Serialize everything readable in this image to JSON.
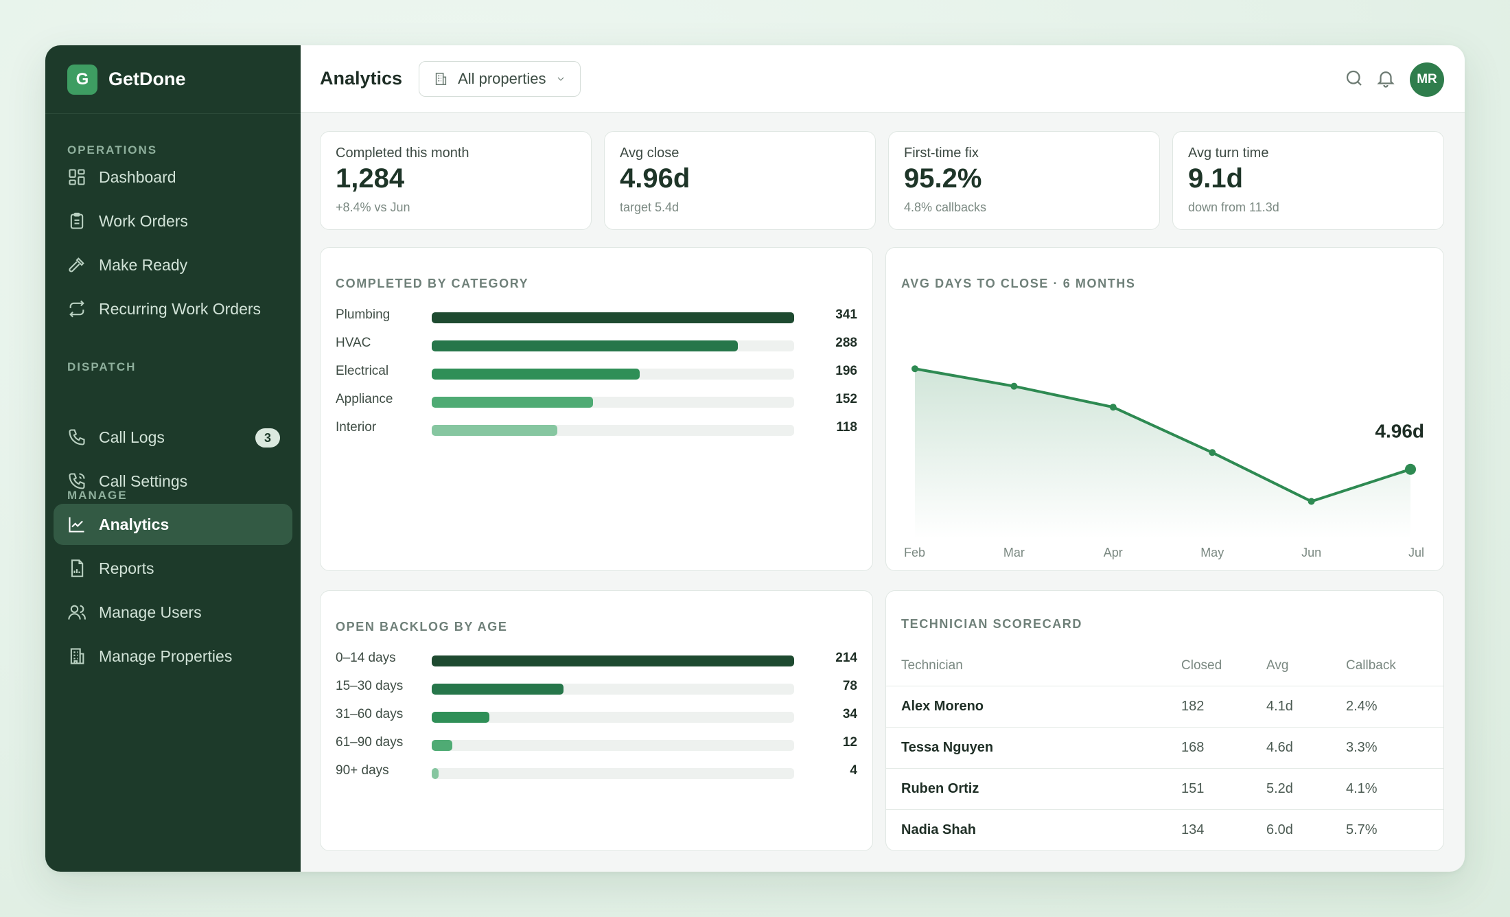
{
  "brand": {
    "initial": "G",
    "name": "GetDone"
  },
  "sidebar": {
    "sections": [
      {
        "label": "OPERATIONS",
        "items": [
          {
            "label": "Dashboard",
            "icon": "dashboard-icon"
          },
          {
            "label": "Work Orders",
            "icon": "clipboard-icon"
          },
          {
            "label": "Make Ready",
            "icon": "hammer-icon"
          },
          {
            "label": "Recurring Work Orders",
            "icon": "repeat-icon"
          }
        ]
      },
      {
        "label": "DISPATCH",
        "items": [
          {
            "label": "Call Logs",
            "icon": "phone-icon",
            "badge": "3"
          },
          {
            "label": "Call Settings",
            "icon": "phone-settings-icon"
          }
        ]
      },
      {
        "label": "MANAGE",
        "items": [
          {
            "label": "Analytics",
            "icon": "chart-line-icon",
            "active": true
          },
          {
            "label": "Reports",
            "icon": "report-icon"
          },
          {
            "label": "Manage Users",
            "icon": "users-icon"
          },
          {
            "label": "Manage Properties",
            "icon": "building-icon"
          }
        ]
      }
    ]
  },
  "header": {
    "title": "Analytics",
    "property_select": "All properties",
    "avatar_initials": "MR"
  },
  "kpis": [
    {
      "label": "Completed this month",
      "value": "1,284",
      "sub": "+8.4% vs Jun"
    },
    {
      "label": "Avg close",
      "value": "4.96d",
      "sub": "target 5.4d"
    },
    {
      "label": "First-time fix",
      "value": "95.2%",
      "sub": "4.8% callbacks"
    },
    {
      "label": "Avg turn time",
      "value": "9.1d",
      "sub": "down from 11.3d"
    }
  ],
  "colors": {
    "sidebar": "#1d3a2a",
    "accent": "#2e8a52",
    "bar_shades": [
      "#1e4a30",
      "#26764a",
      "#2f8f57",
      "#4fab74",
      "#86c6a0"
    ]
  },
  "chart_data": [
    {
      "type": "bar",
      "orientation": "horizontal",
      "title": "COMPLETED BY CATEGORY",
      "categories": [
        "Plumbing",
        "HVAC",
        "Electrical",
        "Appliance",
        "Interior"
      ],
      "values": [
        341,
        288,
        196,
        152,
        118
      ],
      "value_labels": [
        "341",
        "288",
        "196",
        "152",
        "118"
      ]
    },
    {
      "type": "area",
      "title": "AVG DAYS TO CLOSE · 6 MONTHS",
      "categories": [
        "Feb",
        "Mar",
        "Apr",
        "May",
        "Jun",
        "Jul"
      ],
      "values": [
        6.4,
        6.15,
        5.85,
        5.2,
        4.5,
        4.96
      ],
      "end_label": "4.96d",
      "grid": false
    },
    {
      "type": "bar",
      "orientation": "horizontal",
      "title": "OPEN BACKLOG BY AGE",
      "categories": [
        "0–14 days",
        "15–30 days",
        "31–60 days",
        "61–90 days",
        "90+ days"
      ],
      "values": [
        214,
        78,
        34,
        12,
        4
      ],
      "value_labels": [
        "214",
        "78",
        "34",
        "12",
        "4"
      ]
    }
  ],
  "scorecard": {
    "title": "TECHNICIAN SCORECARD",
    "columns": [
      "Technician",
      "Closed",
      "Avg",
      "Callback"
    ],
    "rows": [
      [
        "Alex Moreno",
        "182",
        "4.1d",
        "2.4%"
      ],
      [
        "Tessa Nguyen",
        "168",
        "4.6d",
        "3.3%"
      ],
      [
        "Ruben Ortiz",
        "151",
        "5.2d",
        "4.1%"
      ],
      [
        "Nadia Shah",
        "134",
        "6.0d",
        "5.7%"
      ]
    ]
  }
}
